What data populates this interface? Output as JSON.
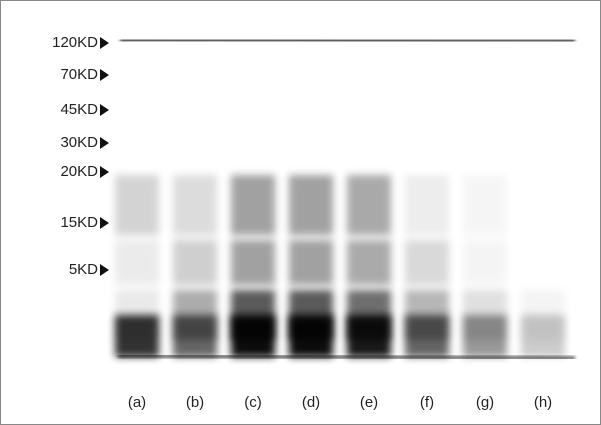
{
  "markers": [
    "120KD",
    "70KD",
    "45KD",
    "30KD",
    "20KD",
    "15KD",
    "5KD"
  ],
  "lanes": [
    "(a)",
    "(b)",
    "(c)",
    "(d)",
    "(e)",
    "(f)",
    "(g)",
    "(h)"
  ]
}
